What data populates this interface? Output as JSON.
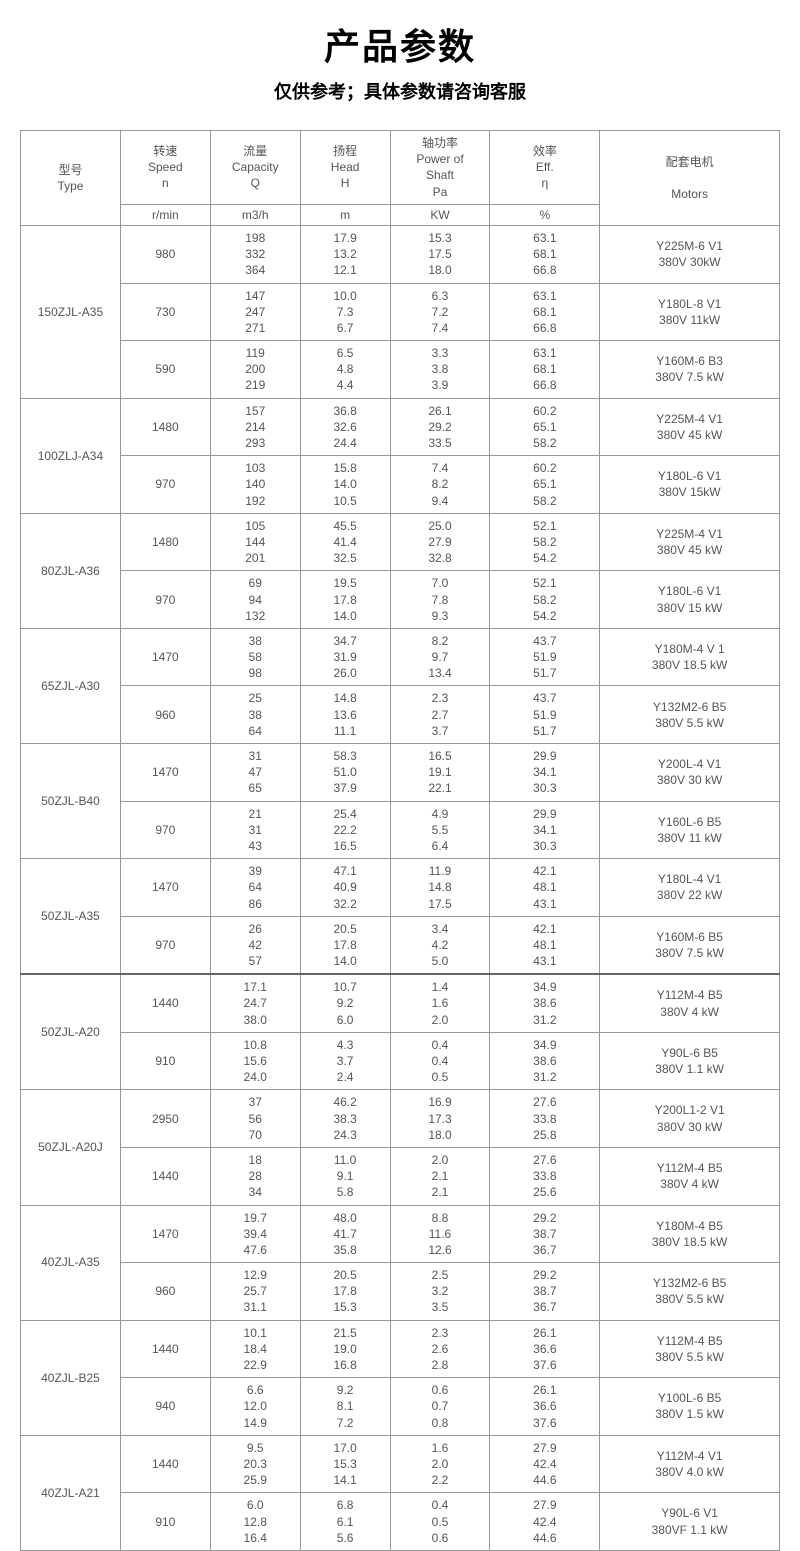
{
  "title": "产品参数",
  "subtitle": "仅供参考；具体参数请咨询客服",
  "headers": {
    "type": "型号\nType",
    "speed": "转速\nSpeed\nn",
    "capacity": "流量\nCapacity\nQ",
    "head": "扬程\nHead\nH",
    "power": "轴功率\nPower of\nShaft\nPa",
    "eff": "效率\nEff.\nη",
    "motors": "配套电机\n\nMotors",
    "units": {
      "speed": "r/min",
      "capacity": "m3/h",
      "head": "m",
      "power": "KW",
      "eff": "%"
    }
  },
  "groups": [
    {
      "type": "150ZJL-A35",
      "rows": [
        {
          "speed": "980",
          "q": "198\n332\n364",
          "h": "17.9\n13.2\n12.1",
          "p": "15.3\n17.5\n18.0",
          "e": "63.1\n68.1\n66.8",
          "m": "Y225M-6  V1\n380V  30kW"
        },
        {
          "speed": "730",
          "q": "147\n247\n271",
          "h": "10.0\n7.3\n6.7",
          "p": "6.3\n7.2\n7.4",
          "e": "63.1\n68.1\n66.8",
          "m": "Y180L-8  V1\n380V  11kW"
        },
        {
          "speed": "590",
          "q": "119\n200\n219",
          "h": "6.5\n4.8\n4.4",
          "p": "3.3\n3.8\n3.9",
          "e": "63.1\n68.1\n66.8",
          "m": "Y160M-6  B3\n380V  7.5 kW"
        }
      ]
    },
    {
      "type": "100ZLJ-A34",
      "rows": [
        {
          "speed": "1480",
          "q": "157\n214\n293",
          "h": "36.8\n32.6\n24.4",
          "p": "26.1\n29.2\n33.5",
          "e": "60.2\n65.1\n58.2",
          "m": "Y225M-4  V1\n380V  45 kW"
        },
        {
          "speed": "970",
          "q": "103\n140\n192",
          "h": "15.8\n14.0\n10.5",
          "p": "7.4\n8.2\n9.4",
          "e": "60.2\n65.1\n58.2",
          "m": "Y180L-6  V1\n380V  15kW"
        }
      ]
    },
    {
      "type": "80ZJL-A36",
      "rows": [
        {
          "speed": "1480",
          "q": "105\n144\n201",
          "h": "45.5\n41.4\n32.5",
          "p": "25.0\n27.9\n32.8",
          "e": "52.1\n58.2\n54.2",
          "m": "Y225M-4  V1\n380V  45 kW"
        },
        {
          "speed": "970",
          "q": "69\n94\n132",
          "h": "19.5\n17.8\n14.0",
          "p": "7.0\n7.8\n9.3",
          "e": "52.1\n58.2\n54.2",
          "m": "Y180L-6  V1\n380V  15 kW"
        }
      ]
    },
    {
      "type": "65ZJL-A30",
      "rows": [
        {
          "speed": "1470",
          "q": "38\n58\n98",
          "h": "34.7\n31.9\n26.0",
          "p": "8.2\n9.7\n13.4",
          "e": "43.7\n51.9\n51.7",
          "m": "Y180M-4  V 1\n380V  18.5 kW"
        },
        {
          "speed": "960",
          "q": "25\n38\n64",
          "h": "14.8\n13.6\n11.1",
          "p": "2.3\n2.7\n3.7",
          "e": "43.7\n51.9\n51.7",
          "m": "Y132M2-6  B5\n380V  5.5 kW"
        }
      ]
    },
    {
      "type": "50ZJL-B40",
      "rows": [
        {
          "speed": "1470",
          "q": "31\n47\n65",
          "h": "58.3\n51.0\n37.9",
          "p": "16.5\n19.1\n22.1",
          "e": "29.9\n34.1\n30.3",
          "m": "Y200L-4  V1\n380V  30 kW"
        },
        {
          "speed": "970",
          "q": "21\n31\n43",
          "h": "25.4\n22.2\n16.5",
          "p": "4.9\n5.5\n6.4",
          "e": "29.9\n34.1\n30.3",
          "m": "Y160L-6  B5\n380V  11 kW"
        }
      ]
    },
    {
      "type": "50ZJL-A35",
      "rows": [
        {
          "speed": "1470",
          "q": "39\n64\n86",
          "h": "47.1\n40.9\n32.2",
          "p": "11.9\n14.8\n17.5",
          "e": "42.1\n48.1\n43.1",
          "m": "Y180L-4  V1\n380V  22 kW"
        },
        {
          "speed": "970",
          "q": "26\n42\n57",
          "h": "20.5\n17.8\n14.0",
          "p": "3.4\n4.2\n5.0",
          "e": "42.1\n48.1\n43.1",
          "m": "Y160M-6  B5\n380V  7.5 kW"
        }
      ]
    },
    {
      "type": "50ZJL-A20",
      "thick": true,
      "rows": [
        {
          "speed": "1440",
          "q": "17.1\n24.7\n38.0",
          "h": "10.7\n9.2\n6.0",
          "p": "1.4\n1.6\n2.0",
          "e": "34.9\n38.6\n31.2",
          "m": "Y112M-4  B5\n380V  4 kW"
        },
        {
          "speed": "910",
          "q": "10.8\n15.6\n24.0",
          "h": "4.3\n3.7\n2.4",
          "p": "0.4\n0.4\n0.5",
          "e": "34.9\n38.6\n31.2",
          "m": "Y90L-6  B5\n380V  1.1 kW"
        }
      ]
    },
    {
      "type": "50ZJL-A20J",
      "rows": [
        {
          "speed": "2950",
          "q": "37\n56\n70",
          "h": "46.2\n38.3\n24.3",
          "p": "16.9\n17.3\n18.0",
          "e": "27.6\n33.8\n25.8",
          "m": "Y200L1-2  V1\n380V  30 kW"
        },
        {
          "speed": "1440",
          "q": "18\n28\n34",
          "h": "11.0\n9.1\n5.8",
          "p": "2.0\n2.1\n2.1",
          "e": "27.6\n33.8\n25.6",
          "m": "Y112M-4  B5\n380V  4 kW"
        }
      ]
    },
    {
      "type": "40ZJL-A35",
      "rows": [
        {
          "speed": "1470",
          "q": "19.7\n39.4\n47.6",
          "h": "48.0\n41.7\n35.8",
          "p": "8.8\n11.6\n12.6",
          "e": "29.2\n38.7\n36.7",
          "m": "Y180M-4  B5\n380V  18.5 kW"
        },
        {
          "speed": "960",
          "q": "12.9\n25.7\n31.1",
          "h": "20.5\n17.8\n15.3",
          "p": "2.5\n3.2\n3.5",
          "e": "29.2\n38.7\n36.7",
          "m": "Y132M2-6  B5\n380V  5.5 kW"
        }
      ]
    },
    {
      "type": "40ZJL-B25",
      "rows": [
        {
          "speed": "1440",
          "q": "10.1\n18.4\n22.9",
          "h": "21.5\n19.0\n16.8",
          "p": "2.3\n2.6\n2.8",
          "e": "26.1\n36.6\n37.6",
          "m": "Y112M-4  B5\n380V  5.5 kW"
        },
        {
          "speed": "940",
          "q": "6.6\n12.0\n14.9",
          "h": "9.2\n8.1\n7.2",
          "p": "0.6\n0.7\n0.8",
          "e": "26.1\n36.6\n37.6",
          "m": "Y100L-6  B5\n380V  1.5 kW"
        }
      ]
    },
    {
      "type": "40ZJL-A21",
      "rows": [
        {
          "speed": "1440",
          "q": "9.5\n20.3\n25.9",
          "h": "17.0\n15.3\n14.1",
          "p": "1.6\n2.0\n2.2",
          "e": "27.9\n42.4\n44.6",
          "m": "Y112M-4  V1\n380V  4.0 kW"
        },
        {
          "speed": "910",
          "q": "6.0\n12.8\n16.4",
          "h": "6.8\n6.1\n5.6",
          "p": "0.4\n0.5\n0.6",
          "e": "27.9\n42.4\n44.6",
          "m": "Y90L-6  V1\n380VF  1.1 kW"
        }
      ]
    }
  ],
  "colwidths": {
    "type": 100,
    "speed": 90,
    "q": 90,
    "h": 90,
    "p": 100,
    "e": 110,
    "m": 180
  }
}
